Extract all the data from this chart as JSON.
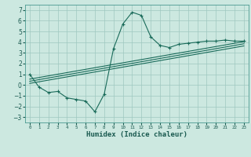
{
  "title": "",
  "xlabel": "Humidex (Indice chaleur)",
  "bg_color": "#cce8e0",
  "grid_color": "#9fc8c0",
  "line_color": "#1a6b5a",
  "xlim": [
    -0.5,
    23.5
  ],
  "ylim": [
    -3.5,
    7.5
  ],
  "xticks": [
    0,
    1,
    2,
    3,
    4,
    5,
    6,
    7,
    8,
    9,
    10,
    11,
    12,
    13,
    14,
    15,
    16,
    17,
    18,
    19,
    20,
    21,
    22,
    23
  ],
  "yticks": [
    -3,
    -2,
    -1,
    0,
    1,
    2,
    3,
    4,
    5,
    6,
    7
  ],
  "main_x": [
    0,
    1,
    2,
    3,
    4,
    5,
    6,
    7,
    8,
    9,
    10,
    11,
    12,
    13,
    14,
    15,
    16,
    17,
    18,
    19,
    20,
    21,
    22,
    23
  ],
  "main_y": [
    1.0,
    -0.2,
    -0.7,
    -0.6,
    -1.2,
    -1.35,
    -1.5,
    -2.5,
    -0.85,
    3.4,
    5.7,
    6.8,
    6.5,
    4.5,
    3.7,
    3.5,
    3.8,
    3.9,
    4.0,
    4.1,
    4.1,
    4.2,
    4.1,
    4.1
  ],
  "line1_x": [
    0,
    23
  ],
  "line1_y": [
    0.55,
    4.05
  ],
  "line2_x": [
    0,
    23
  ],
  "line2_y": [
    0.35,
    3.85
  ],
  "line3_x": [
    0,
    23
  ],
  "line3_y": [
    0.15,
    3.65
  ]
}
